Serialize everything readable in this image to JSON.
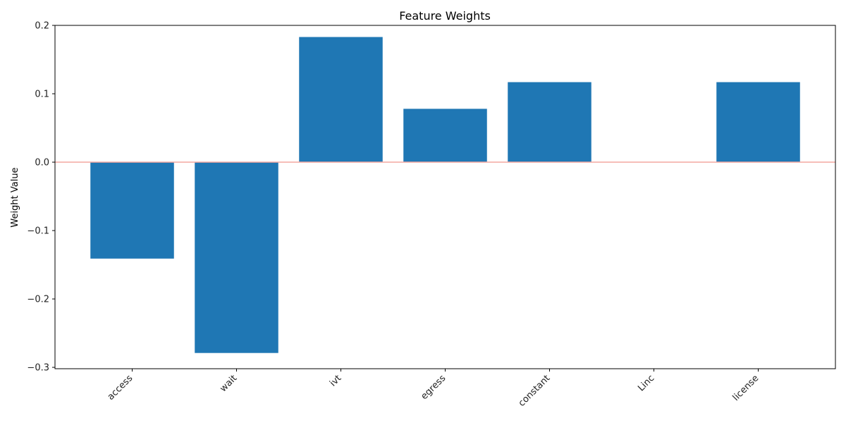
{
  "chart_data": {
    "type": "bar",
    "title": "Feature Weights",
    "xlabel": "",
    "ylabel": "Weight Value",
    "categories": [
      "access",
      "wait",
      "ivt",
      "egress",
      "constant",
      "Linc",
      "license"
    ],
    "values": [
      -0.141,
      -0.279,
      0.183,
      0.078,
      0.117,
      0.0,
      0.117
    ],
    "ylim": [
      -0.302,
      0.2
    ],
    "yticks": [
      -0.3,
      -0.2,
      -0.1,
      0.0,
      0.1,
      0.2
    ],
    "ytick_labels": [
      "−0.3",
      "−0.2",
      "−0.1",
      "0.0",
      "0.1",
      "0.2"
    ],
    "zero_line": true,
    "grid": false,
    "bar_color": "#1f77b4",
    "zero_line_color": "#f4a9a0"
  }
}
